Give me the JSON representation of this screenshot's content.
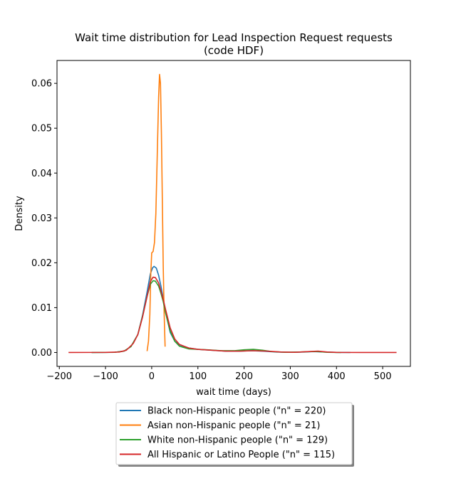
{
  "chart_data": {
    "type": "line",
    "title_line1": "Wait time distribution  for Lead Inspection Request requests",
    "title_line2": "(code HDF)",
    "xlabel": "wait time (days)",
    "ylabel": "Density",
    "xlim": [
      -205,
      560
    ],
    "ylim": [
      -0.0031,
      0.0651
    ],
    "xticks": [
      -200,
      -100,
      0,
      100,
      200,
      300,
      400,
      500
    ],
    "yticks": [
      0.0,
      0.01,
      0.02,
      0.03,
      0.04,
      0.05,
      0.06
    ],
    "legend_position": "below",
    "series": [
      {
        "name": "Black non-Hispanic people (\"n\" = 220)",
        "color": "#1f77b4",
        "points": [
          [
            -130,
            0
          ],
          [
            -80,
            5e-05
          ],
          [
            -60,
            0.0003
          ],
          [
            -45,
            0.0013
          ],
          [
            -30,
            0.004
          ],
          [
            -20,
            0.0082
          ],
          [
            -10,
            0.0135
          ],
          [
            -3,
            0.0175
          ],
          [
            2,
            0.0189
          ],
          [
            5,
            0.0192
          ],
          [
            10,
            0.0188
          ],
          [
            15,
            0.0172
          ],
          [
            20,
            0.0148
          ],
          [
            25,
            0.012
          ],
          [
            30,
            0.009
          ],
          [
            40,
            0.0045
          ],
          [
            50,
            0.0025
          ],
          [
            60,
            0.0017
          ],
          [
            80,
            0.001
          ],
          [
            100,
            0.0007
          ],
          [
            130,
            0.0005
          ],
          [
            160,
            0.0003
          ],
          [
            190,
            0.0003
          ],
          [
            215,
            0.0004
          ],
          [
            240,
            0.0003
          ],
          [
            270,
            0.0001
          ],
          [
            300,
            5e-05
          ],
          [
            330,
            0.0001
          ],
          [
            350,
            0.0002
          ],
          [
            375,
            0.0001
          ],
          [
            400,
            3e-05
          ],
          [
            430,
            0
          ]
        ]
      },
      {
        "name": "Asian non-Hispanic people (\"n\" = 21)",
        "color": "#ff7f0e",
        "points": [
          [
            -10,
            0.0003
          ],
          [
            -7,
            0.0025
          ],
          [
            -4,
            0.0085
          ],
          [
            -2,
            0.0175
          ],
          [
            0,
            0.0222
          ],
          [
            3,
            0.0225
          ],
          [
            6,
            0.0245
          ],
          [
            9,
            0.031
          ],
          [
            12,
            0.044
          ],
          [
            15,
            0.057
          ],
          [
            17,
            0.062
          ],
          [
            19,
            0.06
          ],
          [
            21,
            0.049
          ],
          [
            23,
            0.034
          ],
          [
            25,
            0.019
          ],
          [
            27,
            0.0085
          ],
          [
            29,
            0.0013
          ]
        ]
      },
      {
        "name": "White non-Hispanic people (\"n\" = 129)",
        "color": "#2ca02c",
        "points": [
          [
            -130,
            0
          ],
          [
            -80,
            5e-05
          ],
          [
            -60,
            0.0003
          ],
          [
            -45,
            0.0013
          ],
          [
            -30,
            0.004
          ],
          [
            -20,
            0.008
          ],
          [
            -10,
            0.0125
          ],
          [
            -3,
            0.0152
          ],
          [
            3,
            0.016
          ],
          [
            8,
            0.0159
          ],
          [
            15,
            0.0148
          ],
          [
            20,
            0.0132
          ],
          [
            25,
            0.0113
          ],
          [
            30,
            0.0088
          ],
          [
            40,
            0.0048
          ],
          [
            50,
            0.0025
          ],
          [
            60,
            0.0014
          ],
          [
            80,
            0.0008
          ],
          [
            100,
            0.0007
          ],
          [
            120,
            0.0006
          ],
          [
            150,
            0.0004
          ],
          [
            180,
            0.0004
          ],
          [
            200,
            0.0006
          ],
          [
            220,
            0.0007
          ],
          [
            240,
            0.0005
          ],
          [
            260,
            0.0002
          ],
          [
            290,
            5e-05
          ],
          [
            320,
            0.0001
          ],
          [
            345,
            0.0002
          ],
          [
            360,
            0.0002
          ],
          [
            380,
            5e-05
          ],
          [
            410,
            0
          ]
        ]
      },
      {
        "name": "All Hispanic or Latino People (\"n\" = 115)",
        "color": "#d62728",
        "points": [
          [
            -180,
            0
          ],
          [
            -100,
            2e-05
          ],
          [
            -70,
            0.0001
          ],
          [
            -55,
            0.0005
          ],
          [
            -40,
            0.002
          ],
          [
            -30,
            0.004
          ],
          [
            -20,
            0.0078
          ],
          [
            -10,
            0.0125
          ],
          [
            -3,
            0.0158
          ],
          [
            3,
            0.0168
          ],
          [
            8,
            0.0167
          ],
          [
            15,
            0.0155
          ],
          [
            20,
            0.0137
          ],
          [
            25,
            0.0118
          ],
          [
            30,
            0.0096
          ],
          [
            40,
            0.0055
          ],
          [
            50,
            0.003
          ],
          [
            60,
            0.0018
          ],
          [
            80,
            0.001
          ],
          [
            100,
            0.0007
          ],
          [
            130,
            0.0005
          ],
          [
            160,
            0.0003
          ],
          [
            190,
            0.0003
          ],
          [
            220,
            0.0004
          ],
          [
            250,
            0.0003
          ],
          [
            280,
            0.0001
          ],
          [
            310,
            5e-05
          ],
          [
            340,
            0.0002
          ],
          [
            360,
            0.0003
          ],
          [
            380,
            0.0001
          ],
          [
            400,
            2e-05
          ],
          [
            450,
            0
          ],
          [
            530,
            0
          ]
        ]
      }
    ]
  }
}
